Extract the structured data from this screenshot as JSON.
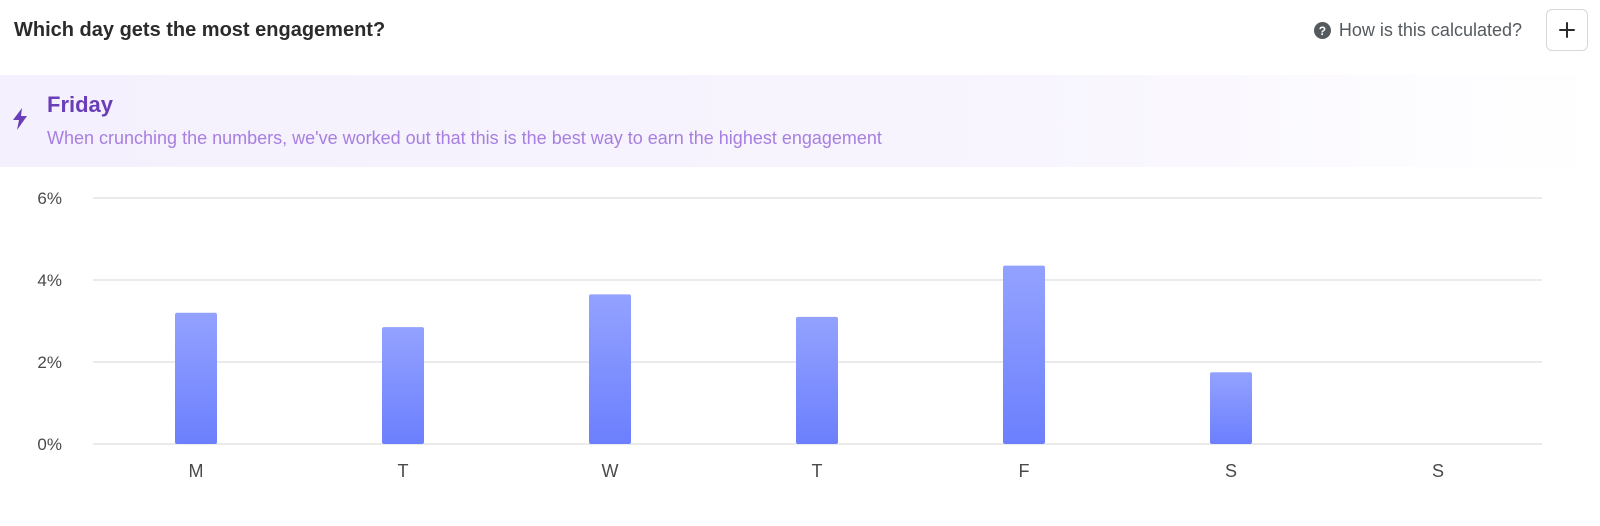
{
  "header": {
    "title": "Which day gets the most engagement?",
    "help_text": "How is this calculated?",
    "help_icon": "question-circle-icon",
    "add_icon": "plus-icon"
  },
  "banner": {
    "icon": "lightning-bolt-icon",
    "title": "Friday",
    "subtitle": "When crunching the numbers, we've worked out that this is the best way to earn the highest engagement"
  },
  "colors": {
    "accent": "#6a3eb8",
    "subtitle": "#a77fe0",
    "bar_top": "#93a2ff",
    "bar_bottom": "#6c7ffd",
    "gridline": "#ebebeb"
  },
  "chart_data": {
    "type": "bar",
    "categories": [
      "M",
      "T",
      "W",
      "T",
      "F",
      "S",
      "S"
    ],
    "values": [
      3.2,
      2.85,
      3.65,
      3.1,
      4.35,
      1.75,
      0
    ],
    "yticks": [
      "0%",
      "2%",
      "4%",
      "6%"
    ],
    "ylim": [
      0,
      6
    ],
    "xlabel": "",
    "ylabel": "",
    "title": "",
    "grid": true
  }
}
